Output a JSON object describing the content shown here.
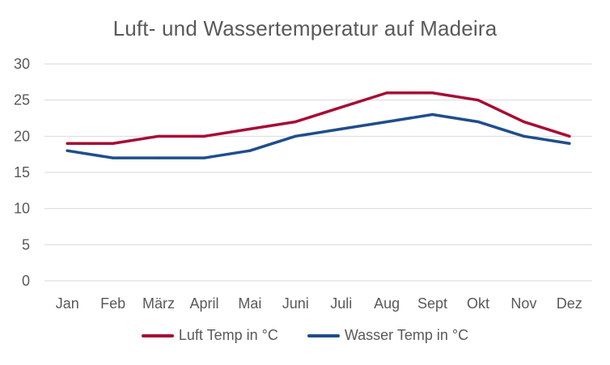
{
  "chart_data": {
    "type": "line",
    "title": "Luft- und Wassertemperatur auf Madeira",
    "categories": [
      "Jan",
      "Feb",
      "März",
      "April",
      "Mai",
      "Juni",
      "Juli",
      "Aug",
      "Sept",
      "Okt",
      "Nov",
      "Dez"
    ],
    "series": [
      {
        "name": "Luft Temp in °C",
        "color": "#A50D36",
        "values": [
          19,
          19,
          20,
          20,
          21,
          22,
          24,
          26,
          26,
          25,
          22,
          20
        ]
      },
      {
        "name": "Wasser Temp in °C",
        "color": "#1F4E8C",
        "values": [
          18,
          17,
          17,
          17,
          18,
          20,
          21,
          22,
          23,
          22,
          20,
          19
        ]
      }
    ],
    "ylim": [
      0,
      30
    ],
    "yticks": [
      0,
      5,
      10,
      15,
      20,
      25,
      30
    ],
    "grid": true,
    "legend_position": "bottom"
  }
}
